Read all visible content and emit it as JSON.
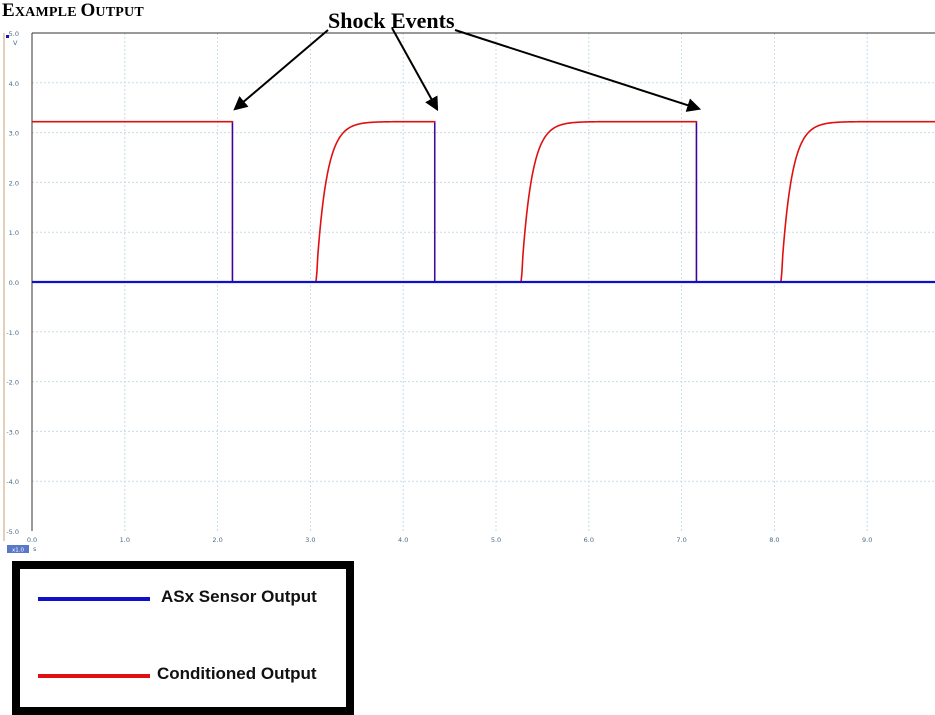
{
  "heading": {
    "first": "E",
    "rest": "XAMPLE ",
    "second": "O",
    "rest2": "UTPUT"
  },
  "annotation": "Shock Events",
  "colors": {
    "sensor": "#1010c8",
    "conditioned": "#e01010",
    "grid": "#c8dcea",
    "tick": "#4a6a8a"
  },
  "chart_data": {
    "type": "line",
    "y_unit": "V",
    "x_unit": "s",
    "xlim": [
      0.0,
      9.75
    ],
    "ylim": [
      -5.0,
      5.0
    ],
    "x_ticks": [
      "0.0",
      "1.0",
      "2.0",
      "3.0",
      "4.0",
      "5.0",
      "6.0",
      "7.0",
      "8.0",
      "9.0"
    ],
    "y_ticks": [
      "5.0",
      "4.0",
      "3.0",
      "2.0",
      "1.0",
      "0.0",
      "-1.0",
      "-2.0",
      "-3.0",
      "-4.0",
      "-5.0"
    ],
    "x_scale_badge": "x1.0",
    "grid": true,
    "series": [
      {
        "name": "ASx Sensor Output",
        "color": "#1010c8",
        "points": [
          [
            0.0,
            0.0
          ],
          [
            2.16,
            0.0
          ],
          [
            2.16,
            3.2
          ],
          [
            2.16,
            0.0
          ],
          [
            4.34,
            0.0
          ],
          [
            4.34,
            3.2
          ],
          [
            4.34,
            0.0
          ],
          [
            7.16,
            0.0
          ],
          [
            7.16,
            3.2
          ],
          [
            7.16,
            0.0
          ],
          [
            9.75,
            0.0
          ]
        ]
      },
      {
        "name": "Conditioned Output",
        "color": "#e01010",
        "high": 3.22,
        "drops": [
          2.16,
          4.34,
          7.16
        ],
        "rises": [
          3.06,
          5.27,
          8.07
        ],
        "points": [
          [
            0.0,
            3.22
          ],
          [
            2.16,
            3.22
          ],
          [
            2.16,
            0.0
          ],
          [
            3.06,
            0.0
          ],
          [
            3.3,
            2.7
          ],
          [
            3.6,
            3.15
          ],
          [
            4.34,
            3.22
          ],
          [
            4.34,
            0.0
          ],
          [
            5.27,
            0.0
          ],
          [
            5.51,
            2.7
          ],
          [
            5.8,
            3.15
          ],
          [
            7.16,
            3.22
          ],
          [
            7.16,
            0.0
          ],
          [
            8.07,
            0.0
          ],
          [
            8.31,
            2.7
          ],
          [
            8.6,
            3.15
          ],
          [
            9.75,
            3.22
          ]
        ]
      }
    ],
    "annotations": [
      {
        "text": "Shock Events",
        "targets": [
          [
            2.16,
            3.2
          ],
          [
            4.34,
            3.2
          ],
          [
            7.16,
            3.2
          ]
        ]
      }
    ]
  },
  "legend": [
    {
      "label": "ASx Sensor Output",
      "color": "#1010c8"
    },
    {
      "label": "Conditioned Output",
      "color": "#e01010"
    }
  ]
}
